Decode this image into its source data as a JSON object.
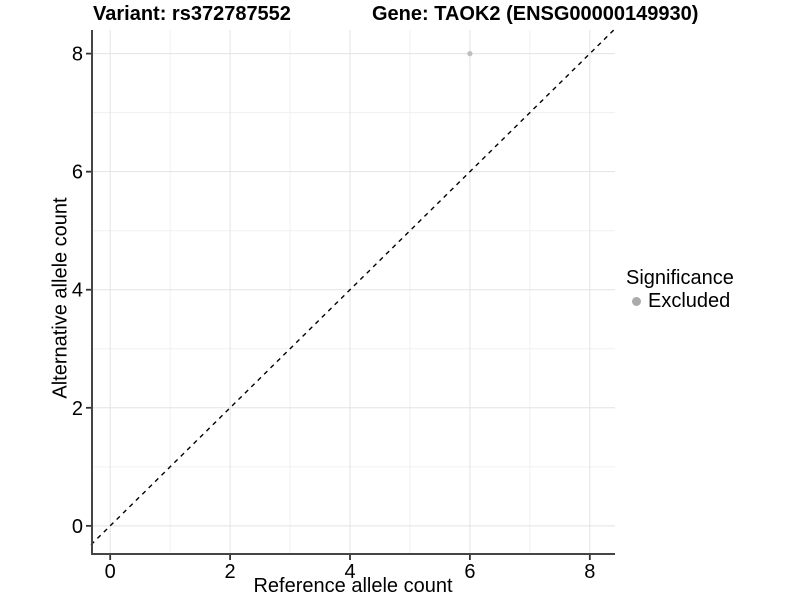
{
  "header": {
    "title_left": "Variant: rs372787552",
    "title_right": "Gene: TAOK2 (ENSG00000149930)"
  },
  "legend": {
    "title": "Significance",
    "items": [
      {
        "label": "Excluded",
        "color": "#ABABAB"
      }
    ]
  },
  "chart_data": {
    "type": "scatter",
    "title_left": "Variant: rs372787552",
    "title_right": "Gene: TAOK2 (ENSG00000149930)",
    "xlabel": "Reference allele count",
    "ylabel": "Alternative allele count",
    "xlim": [
      -0.32,
      8.42
    ],
    "ylim": [
      -0.46,
      8.4
    ],
    "xticks": [
      0,
      2,
      4,
      6,
      8
    ],
    "yticks": [
      0,
      2,
      4,
      6,
      8
    ],
    "minor_ticks_x": [
      1,
      3,
      5,
      7
    ],
    "minor_ticks_y": [
      1,
      3,
      5,
      7
    ],
    "grid": true,
    "legend_position": "right",
    "legend_title": "Significance",
    "series": [
      {
        "name": "Excluded",
        "color": "#BFBFBF",
        "points": [
          {
            "x": 6,
            "y": 8
          }
        ]
      }
    ],
    "identity_line": {
      "type": "y=x",
      "style": "dashed",
      "color": "#000000"
    },
    "colors": {
      "background": "#FFFFFF",
      "grid_major": "#E3E3E3",
      "grid_minor": "#F0F0F0",
      "axis_line": "#454545",
      "tick": "#333333",
      "text": "#000000"
    }
  }
}
